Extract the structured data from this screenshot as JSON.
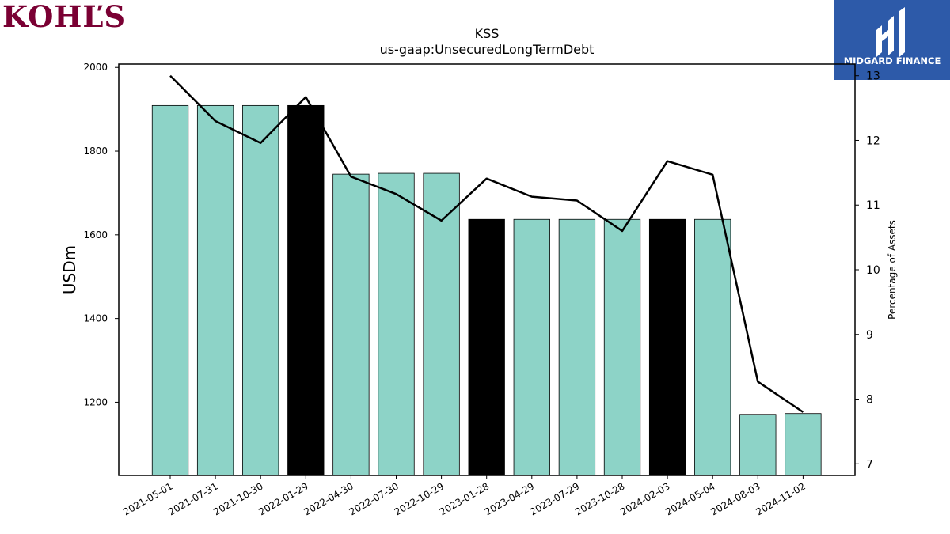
{
  "branding": {
    "company_logo_text": "KOHĽS",
    "publisher_logo_text": "MIDGARD FINANCE",
    "company_color": "#7a0033",
    "publisher_bg": "#2d5aa9"
  },
  "chart_data": {
    "type": "bar",
    "title": "KSS",
    "subtitle": "us-gaap:UnsecuredLongTermDebt",
    "ylabel": "USDm",
    "y2label": "Percentage of Assets",
    "categories": [
      "2021-05-01",
      "2021-07-31",
      "2021-10-30",
      "2022-01-29",
      "2022-04-30",
      "2022-07-30",
      "2022-10-29",
      "2023-01-28",
      "2023-04-29",
      "2023-07-29",
      "2023-10-28",
      "2024-02-03",
      "2024-05-04",
      "2024-08-03",
      "2024-11-02"
    ],
    "values": [
      1909,
      1909,
      1909,
      1909,
      1745,
      1747,
      1747,
      1637,
      1637,
      1637,
      1637,
      1637,
      1637,
      1171,
      1173
    ],
    "highlighted": [
      false,
      false,
      false,
      true,
      false,
      false,
      false,
      true,
      false,
      false,
      false,
      true,
      false,
      false,
      false
    ],
    "bar_color": "#8dd3c7",
    "highlight_color": "#000000",
    "line_series": {
      "name": "",
      "values": [
        13.0,
        12.3,
        11.96,
        12.67,
        11.44,
        11.17,
        10.76,
        11.41,
        11.13,
        11.07,
        10.6,
        11.68,
        11.47,
        8.27,
        7.8
      ],
      "color": "#000000"
    },
    "ylim": [
      1025,
      2008
    ],
    "y_ticks": [
      1200,
      1400,
      1600,
      1800,
      2000
    ],
    "y2lim": [
      6.82,
      13.18
    ],
    "y2_ticks": [
      7,
      8,
      9,
      10,
      11,
      12,
      13
    ],
    "grid": false
  }
}
